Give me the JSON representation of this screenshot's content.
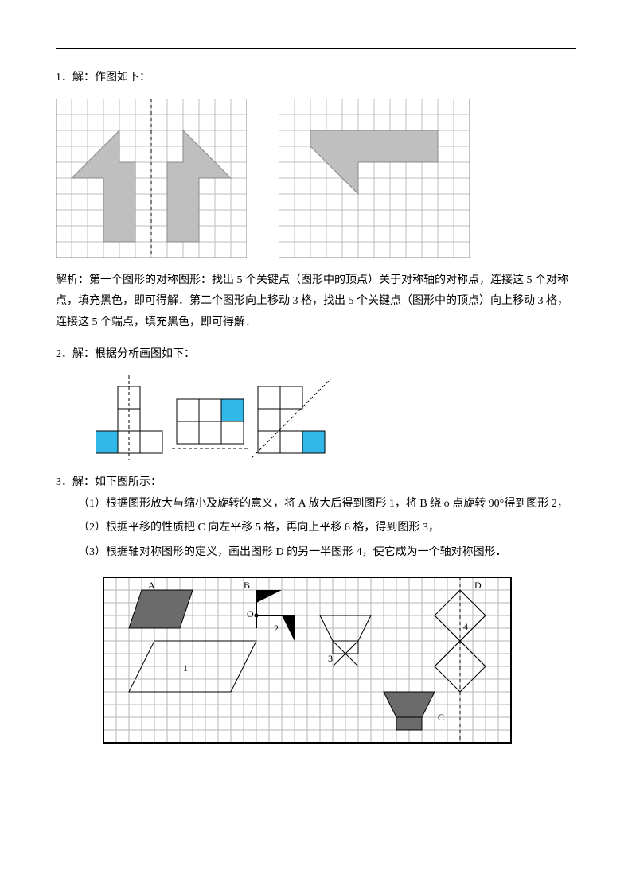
{
  "q1": {
    "header": "1．解：作图如下：",
    "analysis": "解析：第一个图形的对称图形：找出 5 个关键点（图形中的顶点）关于对称轴的对称点，连接这 5 个对称点，填充黑色，即可得解．第二个图形向上移动 3 格，找出 5 个关键点（图形中的顶点）向上移动 3 格，连接这 5 个端点，填充黑色，即可得解．",
    "grid": {
      "cols": 12,
      "rows": 10,
      "cell": 20,
      "stroke": "#bfbfbf",
      "bg": "#ffffff"
    },
    "arrow": {
      "fill": "#bfbfbf",
      "stroke": "#8a8a8a"
    },
    "lshape": {
      "fill": "#bfbfbf",
      "stroke": "#8a8a8a"
    }
  },
  "q2": {
    "header": "2．解：根据分析画图如下：",
    "cell": 28,
    "stroke": "#000000",
    "fill": "#31b8e6",
    "dash": "#000000"
  },
  "q3": {
    "header": "3．解：如下图所示：",
    "line1": "（1）根据图形放大与缩小及旋转的意义，将 A 放大后得到图形 1，将 B 绕 o 点旋转 90°得到图形 2，",
    "line2": "（2）根据平移的性质把 C 向左平移 5 格，再向上平移 6 格，得到图形 3，",
    "line3": "（3）根据轴对称图形的定义，画出图形 D 的另一半图形 4，使它成为一个轴对称图形．",
    "grid": {
      "cols": 32,
      "rows": 13,
      "cell": 16,
      "stroke": "#b5b5b5"
    },
    "fill_dark": "#6b6b6b",
    "labels": {
      "A": "A",
      "B": "B",
      "C": "C",
      "D": "D",
      "O": "O",
      "n1": "1",
      "n2": "2",
      "n3": "3",
      "n4": "4"
    }
  }
}
